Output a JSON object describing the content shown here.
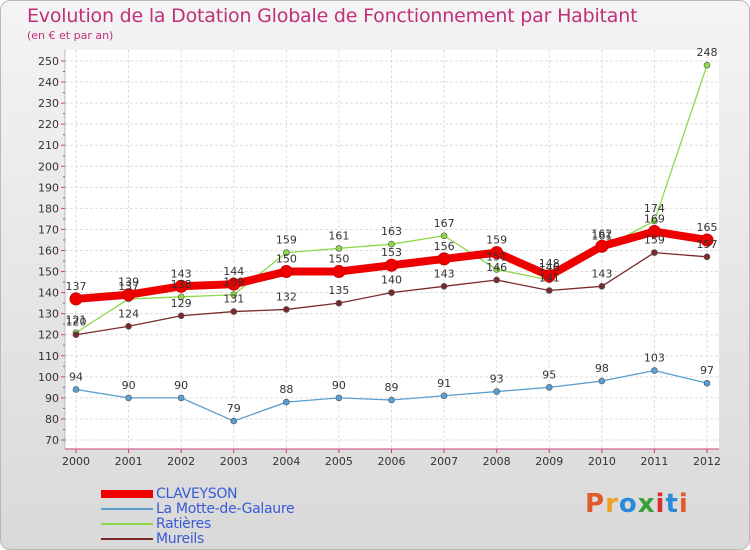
{
  "title": "Evolution de la Dotation Globale de Fonctionnement par Habitant",
  "subtitle": "(en € et par an)",
  "logo": {
    "text": "Proxiti",
    "colors": [
      "#e05a2a",
      "#f0a020",
      "#2a8ad8",
      "#3aa03a",
      "#d83030",
      "#2a8ad8",
      "#e05a2a"
    ]
  },
  "chart_data": {
    "type": "line",
    "title": "Evolution de la Dotation Globale de Fonctionnement par Habitant",
    "subtitle": "(en € et par an)",
    "xlabel": "",
    "ylabel": "",
    "x": [
      "2000",
      "2001",
      "2002",
      "2003",
      "2004",
      "2005",
      "2006",
      "2007",
      "2008",
      "2009",
      "2010",
      "2011",
      "2012"
    ],
    "ylim": [
      70,
      250
    ],
    "yticks": [
      "70",
      "80",
      "90",
      "100",
      "110",
      "120",
      "130",
      "140",
      "150",
      "160",
      "170",
      "180",
      "190",
      "200",
      "210",
      "220",
      "230",
      "240",
      "250"
    ],
    "grid": true,
    "legend": "bottom-left",
    "series": [
      {
        "name": "CLAVEYSON",
        "color": "#ee0000",
        "width": 8,
        "values": [
          137,
          139,
          143,
          144,
          150,
          150,
          153,
          156,
          159,
          148,
          162,
          169,
          165
        ]
      },
      {
        "name": "La Motte-de-Galaure",
        "color": "#5a9fd0",
        "width": 1.3,
        "values": [
          94,
          90,
          90,
          79,
          88,
          90,
          89,
          91,
          93,
          95,
          98,
          103,
          97
        ]
      },
      {
        "name": "Ratières",
        "color": "#8ed84a",
        "width": 1.3,
        "values": [
          121,
          137,
          138,
          139,
          159,
          161,
          163,
          167,
          151,
          146,
          161,
          174,
          248
        ]
      },
      {
        "name": "Mureils",
        "color": "#7a2a2a",
        "width": 1.3,
        "values": [
          120,
          124,
          129,
          131,
          132,
          135,
          140,
          143,
          146,
          141,
          143,
          159,
          157
        ]
      }
    ]
  }
}
